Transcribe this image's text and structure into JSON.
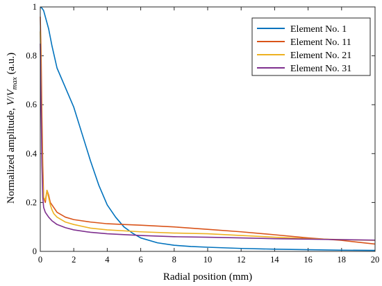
{
  "chart_data": {
    "type": "line",
    "xlabel": "Radial position (mm)",
    "ylabel_parts": [
      "Normalized amplitude, ",
      "V",
      "/",
      "V",
      "max",
      " (a.u.)"
    ],
    "xlim": [
      0,
      20
    ],
    "ylim": [
      0,
      1
    ],
    "xticks": [
      0,
      2,
      4,
      6,
      8,
      10,
      12,
      14,
      16,
      18,
      20
    ],
    "yticks": [
      0,
      0.2,
      0.4,
      0.6,
      0.8,
      1
    ],
    "xtick_labels": [
      "0",
      "2",
      "4",
      "6",
      "8",
      "10",
      "12",
      "14",
      "16",
      "18",
      "20"
    ],
    "ytick_labels": [
      "0",
      "0.2",
      "0.4",
      "0.6",
      "0.8",
      "1"
    ],
    "grid": false,
    "legend_position": "top-right",
    "series": [
      {
        "name": "Element No. 1",
        "color": "#0072BD",
        "x": [
          0,
          0.1,
          0.2,
          0.3,
          0.5,
          0.7,
          1.0,
          1.5,
          2.0,
          2.5,
          3.0,
          3.5,
          4.0,
          4.5,
          5.0,
          5.5,
          6.0,
          7.0,
          8.0,
          9.0,
          10.0,
          12.0,
          14.0,
          16.0,
          18.0,
          20.0
        ],
        "y": [
          1.0,
          0.995,
          0.985,
          0.96,
          0.91,
          0.84,
          0.75,
          0.67,
          0.59,
          0.48,
          0.37,
          0.27,
          0.19,
          0.14,
          0.1,
          0.075,
          0.055,
          0.035,
          0.025,
          0.02,
          0.017,
          0.012,
          0.009,
          0.007,
          0.005,
          0.004
        ]
      },
      {
        "name": "Element No. 11",
        "color": "#D95319",
        "x": [
          0,
          0.05,
          0.1,
          0.15,
          0.2,
          0.3,
          0.4,
          0.5,
          0.6,
          0.7,
          0.8,
          1.0,
          1.5,
          2.0,
          3.0,
          4.0,
          5.0,
          6.0,
          8.0,
          10.0,
          12.0,
          14.0,
          16.0,
          18.0,
          20.0
        ],
        "y": [
          0.96,
          0.8,
          0.55,
          0.35,
          0.22,
          0.2,
          0.25,
          0.23,
          0.2,
          0.19,
          0.18,
          0.16,
          0.14,
          0.13,
          0.12,
          0.113,
          0.11,
          0.107,
          0.1,
          0.09,
          0.08,
          0.068,
          0.055,
          0.045,
          0.03
        ]
      },
      {
        "name": "Element No. 21",
        "color": "#EDB120",
        "x": [
          0,
          0.05,
          0.1,
          0.15,
          0.2,
          0.3,
          0.4,
          0.5,
          0.6,
          0.7,
          0.8,
          1.0,
          1.5,
          2.0,
          3.0,
          4.0,
          6.0,
          8.0,
          10.0,
          12.0,
          14.0,
          16.0,
          18.0,
          20.0
        ],
        "y": [
          0.9,
          0.7,
          0.45,
          0.28,
          0.22,
          0.21,
          0.25,
          0.22,
          0.19,
          0.17,
          0.155,
          0.14,
          0.12,
          0.11,
          0.095,
          0.088,
          0.08,
          0.075,
          0.072,
          0.065,
          0.058,
          0.052,
          0.048,
          0.045
        ]
      },
      {
        "name": "Element No. 31",
        "color": "#7E2F8E",
        "x": [
          0,
          0.05,
          0.1,
          0.15,
          0.2,
          0.3,
          0.5,
          0.7,
          1.0,
          1.5,
          2.0,
          3.0,
          4.0,
          6.0,
          8.0,
          10.0,
          12.0,
          14.0,
          16.0,
          18.0,
          20.0
        ],
        "y": [
          0.85,
          0.6,
          0.35,
          0.22,
          0.18,
          0.16,
          0.14,
          0.125,
          0.11,
          0.097,
          0.088,
          0.078,
          0.072,
          0.065,
          0.06,
          0.058,
          0.055,
          0.052,
          0.05,
          0.048,
          0.046
        ]
      }
    ]
  }
}
